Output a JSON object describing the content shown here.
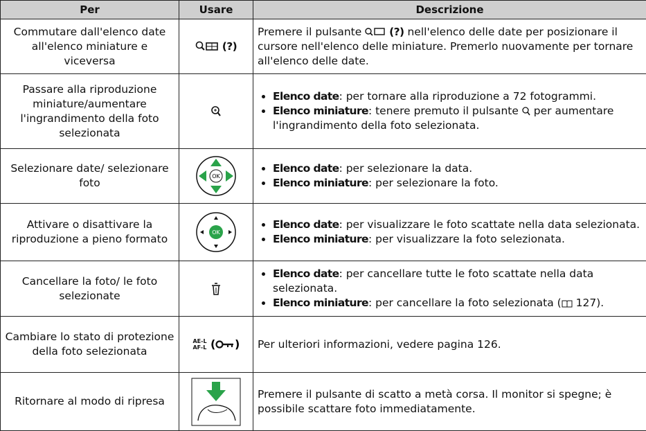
{
  "table": {
    "header": [
      "Per",
      "Usare",
      "Descrizione"
    ],
    "rows": [
      {
        "per": "Commutare dall'elenco date all'elenco miniature e viceversa",
        "usare": "(?)",
        "desc": [
          "Premere il pulsante",
          "(?)",
          "nell'elenco delle date per posizionare il cursore nell'elenco delle miniature.  Premerlo nuovamente per tornare all'elenco delle date."
        ]
      },
      {
        "per": "Passare alla riproduzione miniature/aumentare l'ingrandimento della foto selezionata",
        "bullets": [
          {
            "term": "Elenco date",
            "text": ": per tornare alla riproduzione a 72 fotogrammi."
          },
          {
            "term": "Elenco miniature",
            "text": ": tenere premuto il pulsante",
            "text2": "per aumentare l'ingrandimento della foto selezionata."
          }
        ]
      },
      {
        "per": "Selezionare date/ selezionare foto",
        "bullets": [
          {
            "term": "Elenco date",
            "text": ": per selezionare la data."
          },
          {
            "term": "Elenco miniature",
            "text": ": per selezionare la foto."
          }
        ]
      },
      {
        "per": "Attivare o disattivare la riproduzione a pieno formato",
        "bullets": [
          {
            "term": "Elenco date",
            "text": ": per visualizzare le foto scattate nella data selezionata."
          },
          {
            "term": "Elenco miniature",
            "text": ": per visualizzare la foto selezionata."
          }
        ]
      },
      {
        "per": "Cancellare la foto/ le foto selezionate",
        "bullets": [
          {
            "term": "Elenco date",
            "text": ": per cancellare tutte le foto scattate nella data selezionata."
          },
          {
            "term": "Elenco miniature",
            "text": ": per cancellare la foto selezionata (",
            "text2": "127)."
          }
        ]
      },
      {
        "per": "Cambiare lo stato di protezione della foto selezionata",
        "usare": [
          "AE-L",
          "AF-L"
        ],
        "desc": "Per ulteriori informazioni, vedere pagina 126."
      },
      {
        "per": "Ritornare al modo di ripresa",
        "desc": "Premere il pulsante di scatto a metà corsa.  Il monitor si spegne; è possibile scattare foto immediatamente."
      }
    ]
  }
}
